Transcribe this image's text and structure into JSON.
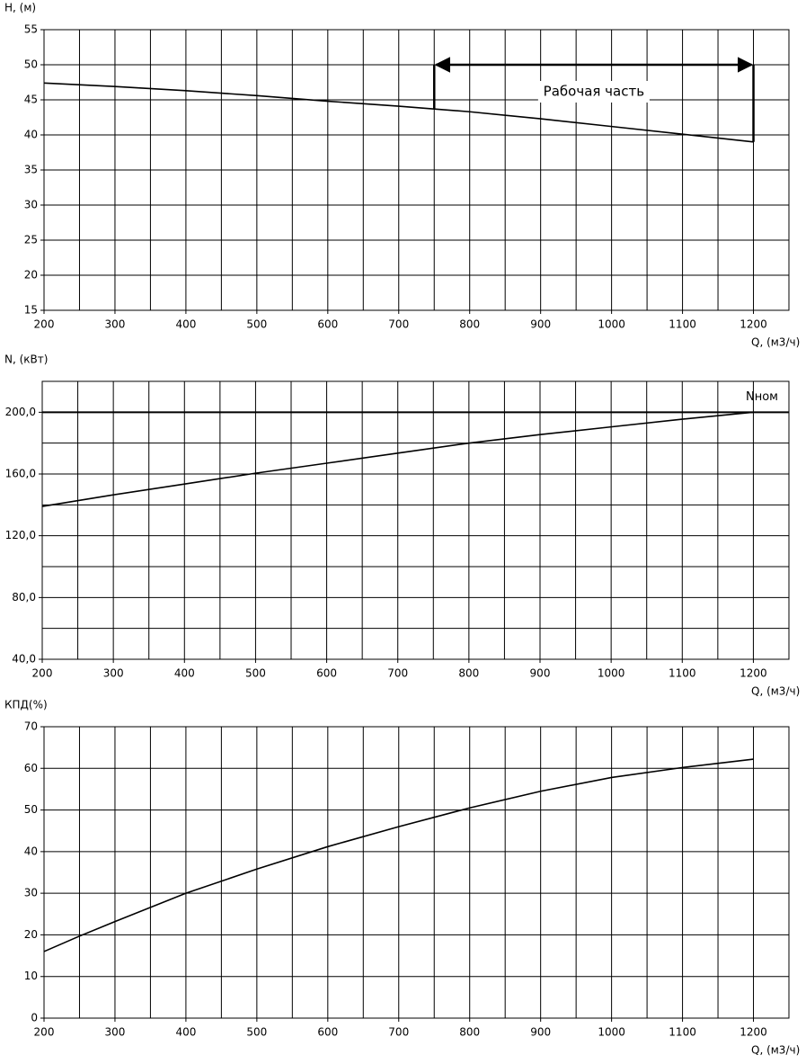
{
  "chart_data": [
    {
      "type": "line",
      "y_label": "H, (м)",
      "x_label": "Q, (м3/ч)",
      "color": "#000000",
      "x": [
        200,
        300,
        400,
        500,
        600,
        700,
        750,
        800,
        900,
        1000,
        1100,
        1200
      ],
      "values": [
        47.4,
        46.9,
        46.3,
        45.6,
        44.8,
        44.1,
        43.7,
        43.3,
        42.3,
        41.2,
        40.1,
        39.0
      ],
      "xlim": [
        200,
        1250
      ],
      "ylim": [
        15,
        55
      ],
      "xticks": [
        200,
        300,
        400,
        500,
        600,
        700,
        800,
        900,
        1000,
        1100,
        1200
      ],
      "xgrid": [
        250,
        300,
        350,
        400,
        450,
        500,
        550,
        600,
        650,
        700,
        750,
        800,
        850,
        900,
        950,
        1000,
        1050,
        1100,
        1150,
        1200
      ],
      "yticks": [
        15,
        20,
        25,
        30,
        35,
        40,
        45,
        50,
        55
      ],
      "annotation": {
        "label": "Рабочая часть",
        "x": [
          750,
          1200
        ],
        "y": 50
      }
    },
    {
      "type": "line",
      "y_label": "N, (кВт)",
      "x_label": "Q, (м3/ч)",
      "color": "#000000",
      "x": [
        200,
        300,
        400,
        500,
        600,
        700,
        800,
        900,
        1000,
        1100,
        1200
      ],
      "values": [
        139,
        146.5,
        153.5,
        160.5,
        167,
        173.5,
        180,
        185.5,
        190.5,
        195.5,
        200
      ],
      "xlim": [
        200,
        1250
      ],
      "ylim": [
        40,
        220
      ],
      "xticks": [
        200,
        300,
        400,
        500,
        600,
        700,
        800,
        900,
        1000,
        1100,
        1200
      ],
      "xgrid": [
        250,
        300,
        350,
        400,
        450,
        500,
        550,
        600,
        650,
        700,
        750,
        800,
        850,
        900,
        950,
        1000,
        1050,
        1100,
        1150,
        1200
      ],
      "yticks": [
        {
          "value": 40,
          "label": "40,0"
        },
        {
          "value": 80,
          "label": "80,0"
        },
        {
          "value": 120,
          "label": "120,0"
        },
        {
          "value": 160,
          "label": "160,0"
        },
        {
          "value": 200,
          "label": "200,0"
        }
      ],
      "ygrid": [
        60,
        100,
        140,
        180
      ],
      "reference_line": {
        "label": "Nном",
        "y": 200
      }
    },
    {
      "type": "line",
      "y_label": "КПД(%)",
      "x_label": "Q, (м3/ч)",
      "color": "#000000",
      "x": [
        200,
        250,
        300,
        400,
        500,
        600,
        700,
        800,
        900,
        1000,
        1100,
        1200
      ],
      "values": [
        16,
        19.7,
        23.2,
        30,
        35.8,
        41.2,
        46,
        50.5,
        54.5,
        57.8,
        60.2,
        62.2
      ],
      "xlim": [
        200,
        1250
      ],
      "ylim": [
        0,
        70
      ],
      "xticks": [
        200,
        300,
        400,
        500,
        600,
        700,
        800,
        900,
        1000,
        1100,
        1200
      ],
      "xgrid": [
        250,
        300,
        350,
        400,
        450,
        500,
        550,
        600,
        650,
        700,
        750,
        800,
        850,
        900,
        950,
        1000,
        1050,
        1100,
        1150,
        1200
      ],
      "yticks": [
        0,
        10,
        20,
        30,
        40,
        50,
        60,
        70
      ]
    }
  ]
}
